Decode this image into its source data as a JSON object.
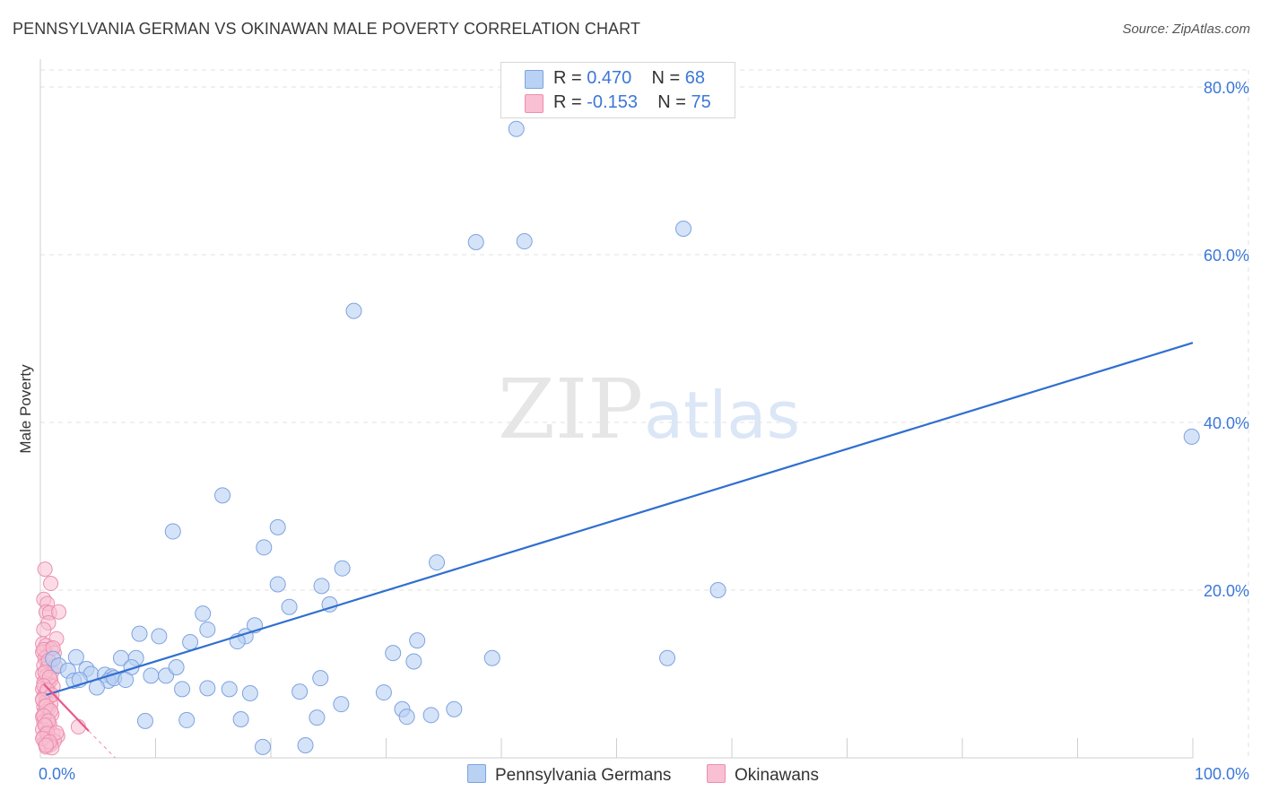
{
  "title": "PENNSYLVANIA GERMAN VS OKINAWAN MALE POVERTY CORRELATION CHART",
  "source": "Source: ZipAtlas.com",
  "watermark": {
    "zip": "ZIP",
    "atlas": "atlas"
  },
  "colors": {
    "blue_fill": "#b9d1f3",
    "blue_stroke": "#7da3e0",
    "blue_line": "#2f6fd0",
    "pink_fill": "#f8c0d2",
    "pink_stroke": "#ec8fae",
    "pink_line": "#e8588a",
    "grid": "#e0e0e0",
    "tick_text": "#3b78d8"
  },
  "legend": {
    "row1": {
      "r_label": "R = ",
      "r_value": "0.470",
      "n_label": "N = ",
      "n_value": "68"
    },
    "row2": {
      "r_label": "R = ",
      "r_value": "-0.153",
      "n_label": "N = ",
      "n_value": "75"
    }
  },
  "bottom_legend": {
    "series1": "Pennsylvania Germans",
    "series2": "Okinawans"
  },
  "chart_data": {
    "type": "scatter",
    "title": "PENNSYLVANIA GERMAN VS OKINAWAN MALE POVERTY CORRELATION CHART",
    "xlabel": "",
    "ylabel": "Male Poverty",
    "xlim": [
      0,
      100
    ],
    "ylim": [
      0,
      80
    ],
    "x_tick_labels": [
      "0.0%",
      "100.0%"
    ],
    "y_ticks": [
      20,
      40,
      60,
      80
    ],
    "y_tick_labels": [
      "20.0%",
      "40.0%",
      "60.0%",
      "80.0%"
    ],
    "series": [
      {
        "name": "Pennsylvania Germans",
        "R": 0.47,
        "N": 68,
        "trend": {
          "x": [
            0.5,
            100
          ],
          "y": [
            7.5,
            49.5
          ]
        },
        "points": [
          [
            41.3,
            75.0
          ],
          [
            37.8,
            61.5
          ],
          [
            42.0,
            61.6
          ],
          [
            55.8,
            63.1
          ],
          [
            27.2,
            53.3
          ],
          [
            99.9,
            38.3
          ],
          [
            15.8,
            31.3
          ],
          [
            11.5,
            27.0
          ],
          [
            20.6,
            27.5
          ],
          [
            19.4,
            25.1
          ],
          [
            34.4,
            23.3
          ],
          [
            26.2,
            22.6
          ],
          [
            20.6,
            20.7
          ],
          [
            24.4,
            20.5
          ],
          [
            58.8,
            20.0
          ],
          [
            21.6,
            18.0
          ],
          [
            25.1,
            18.3
          ],
          [
            14.1,
            17.2
          ],
          [
            18.6,
            15.8
          ],
          [
            14.5,
            15.3
          ],
          [
            8.6,
            14.8
          ],
          [
            10.3,
            14.5
          ],
          [
            17.8,
            14.5
          ],
          [
            13.0,
            13.8
          ],
          [
            17.1,
            13.9
          ],
          [
            32.7,
            14.0
          ],
          [
            30.6,
            12.5
          ],
          [
            32.4,
            11.5
          ],
          [
            39.2,
            11.9
          ],
          [
            54.4,
            11.9
          ],
          [
            1.1,
            11.8
          ],
          [
            1.6,
            11.0
          ],
          [
            2.4,
            10.4
          ],
          [
            4.0,
            10.6
          ],
          [
            4.4,
            10.0
          ],
          [
            5.6,
            9.9
          ],
          [
            6.2,
            9.7
          ],
          [
            7.0,
            11.9
          ],
          [
            8.3,
            11.9
          ],
          [
            7.9,
            10.8
          ],
          [
            9.6,
            9.8
          ],
          [
            10.9,
            9.8
          ],
          [
            11.8,
            10.8
          ],
          [
            24.3,
            9.5
          ],
          [
            2.9,
            9.2
          ],
          [
            3.4,
            9.3
          ],
          [
            5.9,
            9.2
          ],
          [
            6.4,
            9.5
          ],
          [
            7.4,
            9.3
          ],
          [
            4.9,
            8.4
          ],
          [
            12.3,
            8.2
          ],
          [
            14.5,
            8.3
          ],
          [
            16.4,
            8.2
          ],
          [
            18.2,
            7.7
          ],
          [
            22.5,
            7.9
          ],
          [
            29.8,
            7.8
          ],
          [
            26.1,
            6.4
          ],
          [
            31.4,
            5.8
          ],
          [
            33.9,
            5.1
          ],
          [
            35.9,
            5.8
          ],
          [
            9.1,
            4.4
          ],
          [
            12.7,
            4.5
          ],
          [
            17.4,
            4.6
          ],
          [
            24.0,
            4.8
          ],
          [
            31.8,
            4.9
          ],
          [
            19.3,
            1.3
          ],
          [
            23.0,
            1.5
          ],
          [
            3.1,
            12.0
          ]
        ]
      },
      {
        "name": "Okinawans",
        "R": -0.153,
        "N": 75,
        "trend": {
          "x": [
            0.3,
            4.2
          ],
          "y": [
            8.8,
            3.2
          ]
        },
        "trend_extension": {
          "x": [
            4.2,
            6.5
          ],
          "y": [
            3.2,
            0.0
          ]
        },
        "points": [
          [
            0.4,
            22.5
          ],
          [
            0.9,
            20.8
          ],
          [
            0.3,
            18.9
          ],
          [
            0.6,
            18.4
          ],
          [
            0.5,
            17.4
          ],
          [
            0.8,
            17.3
          ],
          [
            1.6,
            17.4
          ],
          [
            0.7,
            16.1
          ],
          [
            0.3,
            15.3
          ],
          [
            1.4,
            14.2
          ],
          [
            0.2,
            13.6
          ],
          [
            0.5,
            13.4
          ],
          [
            0.9,
            13.0
          ],
          [
            0.2,
            12.6
          ],
          [
            0.6,
            12.1
          ],
          [
            1.2,
            12.5
          ],
          [
            0.4,
            11.9
          ],
          [
            0.8,
            11.4
          ],
          [
            0.3,
            11.0
          ],
          [
            0.6,
            10.7
          ],
          [
            1.0,
            10.3
          ],
          [
            0.2,
            10.0
          ],
          [
            0.5,
            9.7
          ],
          [
            0.9,
            9.3
          ],
          [
            0.3,
            9.0
          ],
          [
            0.7,
            8.8
          ],
          [
            1.1,
            8.5
          ],
          [
            0.2,
            8.2
          ],
          [
            0.6,
            7.9
          ],
          [
            0.4,
            7.6
          ],
          [
            0.8,
            7.3
          ],
          [
            0.2,
            7.0
          ],
          [
            0.5,
            6.7
          ],
          [
            0.9,
            6.4
          ],
          [
            0.3,
            6.1
          ],
          [
            0.7,
            5.8
          ],
          [
            0.4,
            5.5
          ],
          [
            1.0,
            5.2
          ],
          [
            0.2,
            4.9
          ],
          [
            0.6,
            4.6
          ],
          [
            0.3,
            4.3
          ],
          [
            0.8,
            4.0
          ],
          [
            0.5,
            3.7
          ],
          [
            3.3,
            3.7
          ],
          [
            0.2,
            3.4
          ],
          [
            0.6,
            3.1
          ],
          [
            1.1,
            2.8
          ],
          [
            1.5,
            2.6
          ],
          [
            0.3,
            2.5
          ],
          [
            0.7,
            2.2
          ],
          [
            1.2,
            2.0
          ],
          [
            0.4,
            1.8
          ],
          [
            0.9,
            1.6
          ],
          [
            0.5,
            1.3
          ],
          [
            1.0,
            1.2
          ],
          [
            0.3,
            12.9
          ],
          [
            0.7,
            11.6
          ],
          [
            1.3,
            10.9
          ],
          [
            0.4,
            10.2
          ],
          [
            0.8,
            9.6
          ],
          [
            0.3,
            8.6
          ],
          [
            0.6,
            8.1
          ],
          [
            1.0,
            7.5
          ],
          [
            0.2,
            6.9
          ],
          [
            0.5,
            6.2
          ],
          [
            0.9,
            5.6
          ],
          [
            0.3,
            5.0
          ],
          [
            0.7,
            4.4
          ],
          [
            0.4,
            3.9
          ],
          [
            0.6,
            2.9
          ],
          [
            1.4,
            3.0
          ],
          [
            0.2,
            2.3
          ],
          [
            0.8,
            1.9
          ],
          [
            0.5,
            1.5
          ],
          [
            1.1,
            13.1
          ]
        ]
      }
    ]
  }
}
